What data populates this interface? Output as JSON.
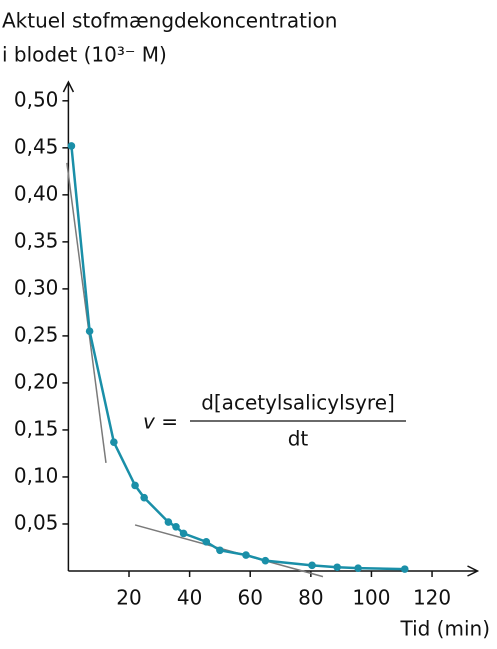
{
  "chart_data": {
    "type": "line",
    "y_label": [
      "Aktuel stofmængdekoncentration",
      "i blodet (10³⁻ M)"
    ],
    "x_label": "Tid (min)",
    "x": [
      1,
      7,
      15,
      22,
      25,
      33,
      35.5,
      38,
      45.5,
      50,
      58.6,
      65,
      80.4,
      88.7,
      95.6,
      111
    ],
    "series": [
      {
        "color": "#1a8fa8",
        "values": [
          0.452,
          0.255,
          0.137,
          0.091,
          0.078,
          0.052,
          0.047,
          0.04,
          0.031,
          0.022,
          0.017,
          0.011,
          0.006,
          0.004,
          0.003,
          0.002
        ]
      }
    ],
    "tangents": [
      {
        "x": [
          -0.5,
          12.4
        ],
        "y": [
          0.434,
          0.115
        ]
      },
      {
        "x": [
          22,
          84
        ],
        "y": [
          0.049,
          -0.006
        ]
      }
    ],
    "tangent_color": "#7a7a7a",
    "formula": {
      "lhs": "v =",
      "numerator": "d[acetylsalicylsyre]",
      "denominator": "dt"
    },
    "xlim": [
      0,
      135
    ],
    "ylim": [
      0,
      0.52
    ],
    "xticks": [
      20,
      40,
      60,
      80,
      100,
      120
    ],
    "yticks": [
      {
        "value": 0.05,
        "label": "0,05"
      },
      {
        "value": 0.1,
        "label": "0,10"
      },
      {
        "value": 0.15,
        "label": "0,15"
      },
      {
        "value": 0.2,
        "label": "0,20"
      },
      {
        "value": 0.25,
        "label": "0,25"
      },
      {
        "value": 0.3,
        "label": "0,30"
      },
      {
        "value": 0.35,
        "label": "0,35"
      },
      {
        "value": 0.4,
        "label": "0,40"
      },
      {
        "value": 0.45,
        "label": "0,45"
      },
      {
        "value": 0.5,
        "label": "0,50"
      }
    ]
  }
}
